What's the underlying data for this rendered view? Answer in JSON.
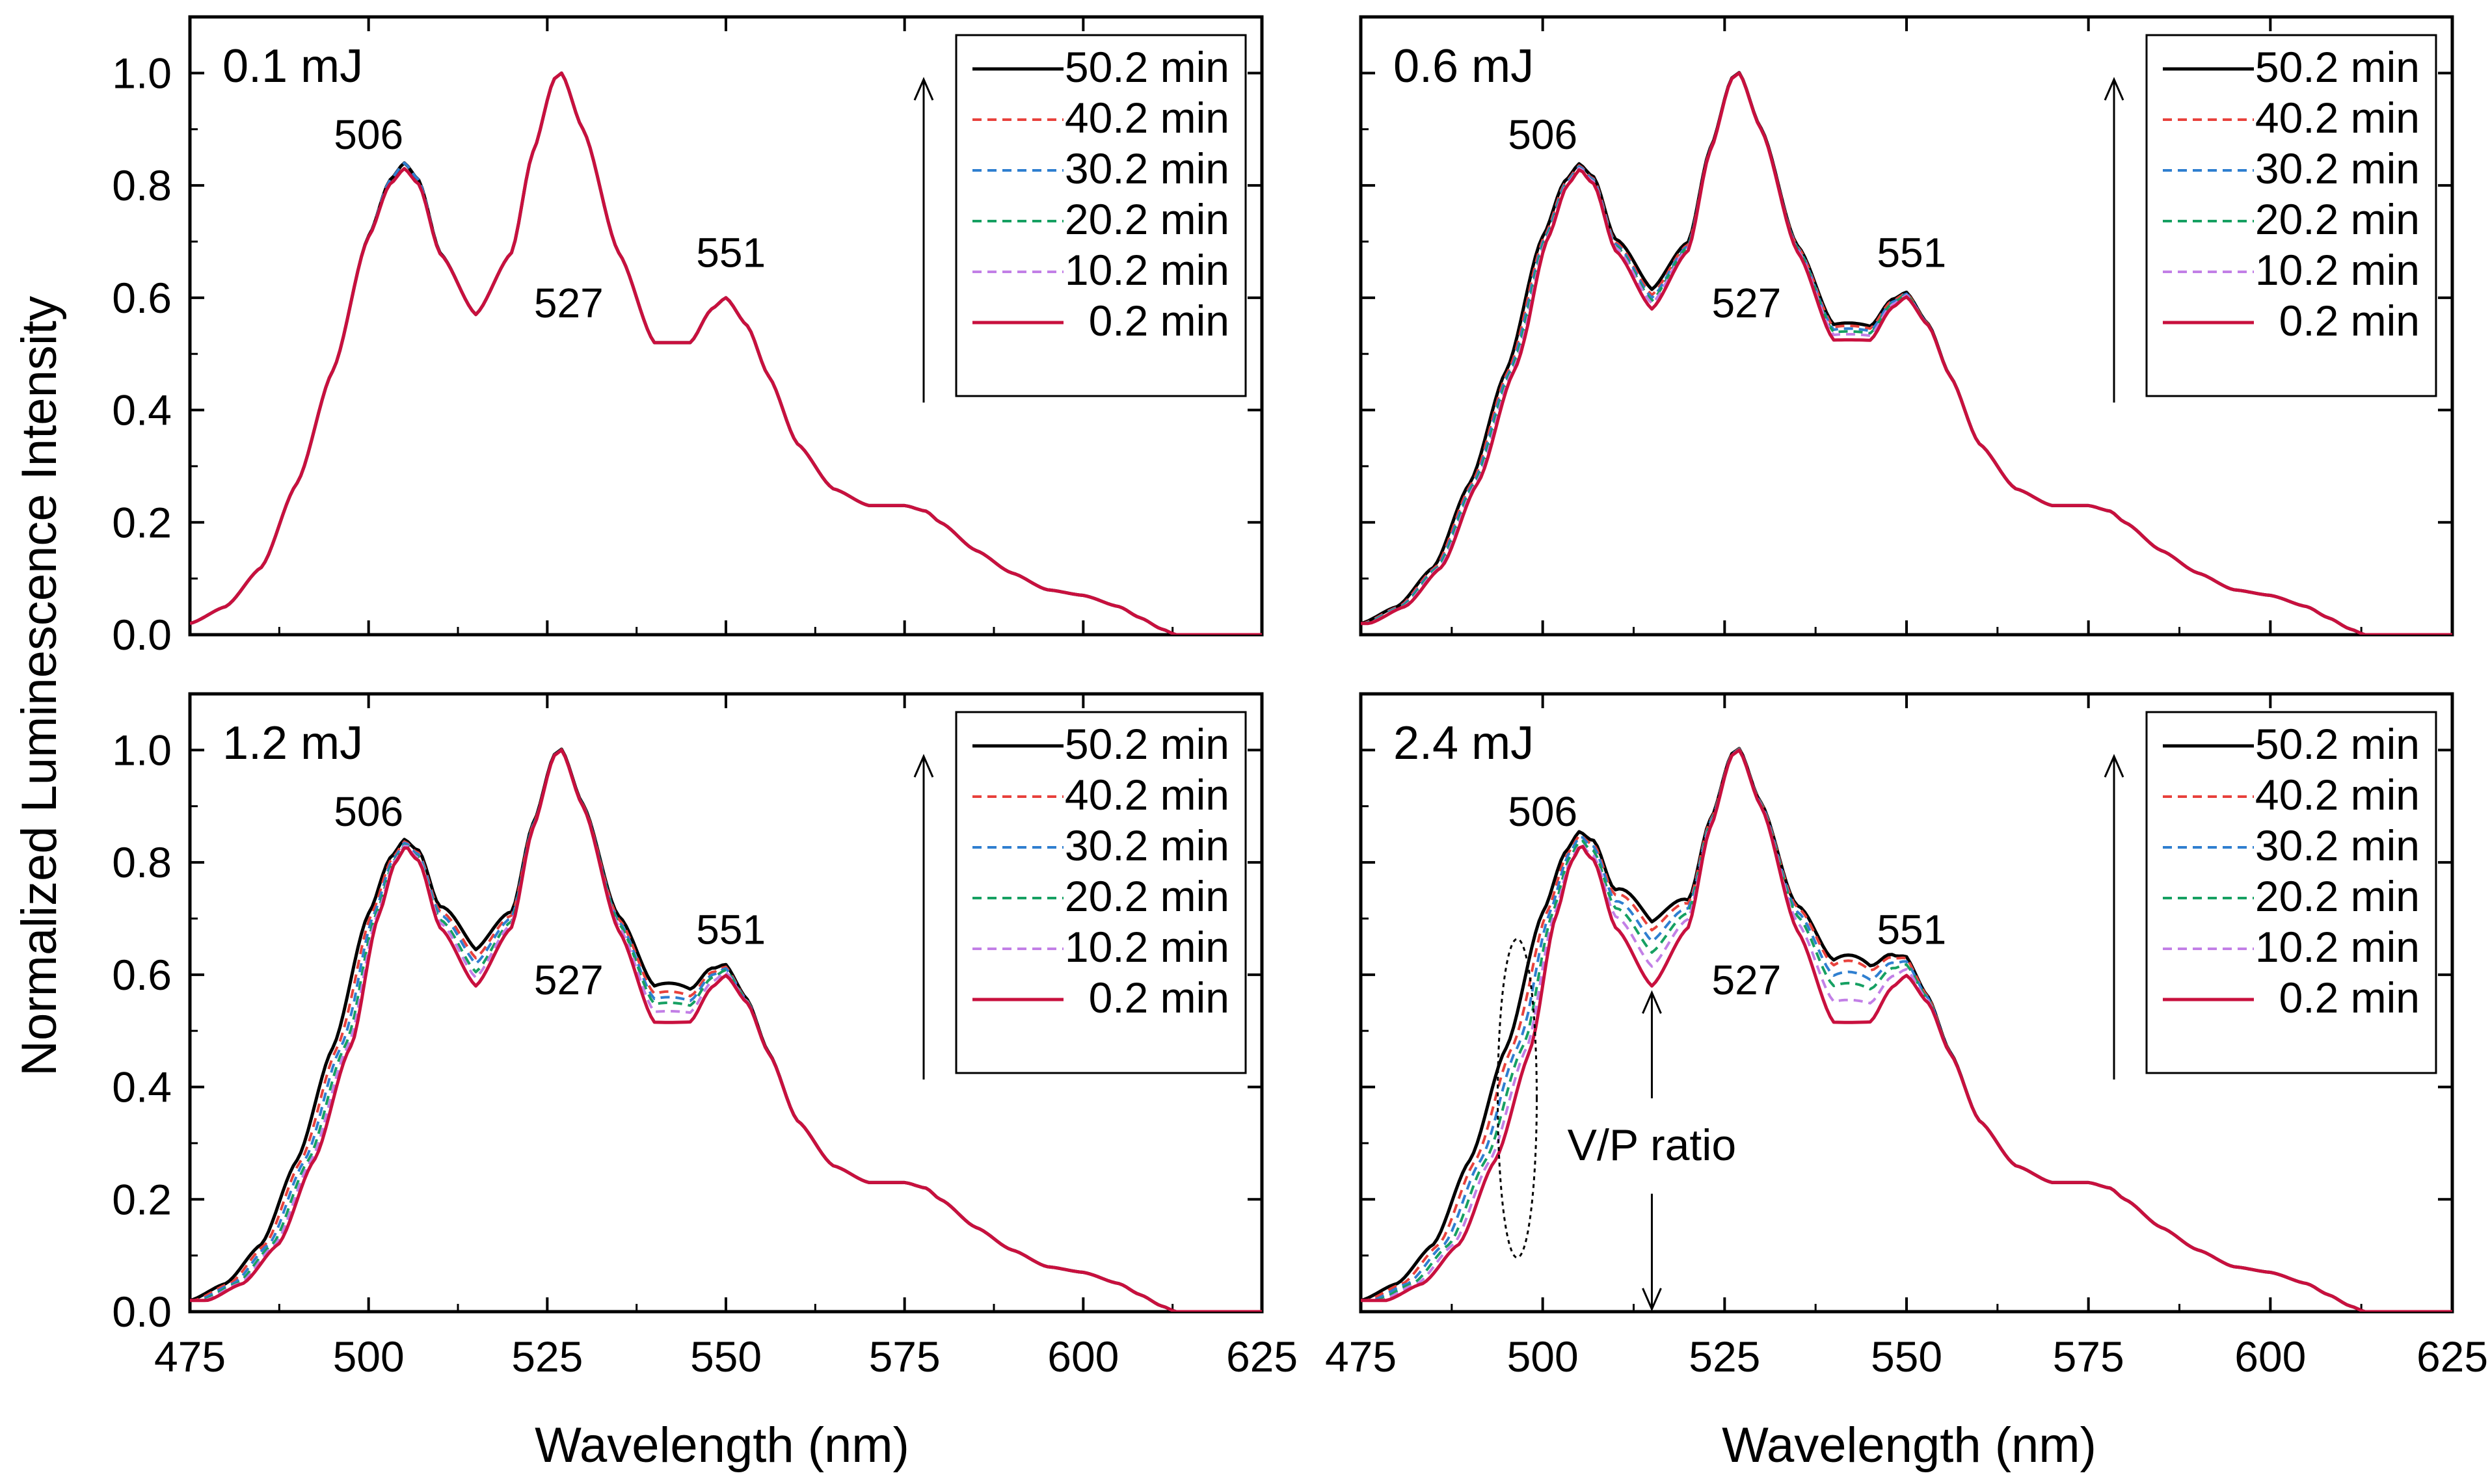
{
  "chart_data": {
    "type": "line",
    "title": "",
    "xlabel": "Wavelength (nm)",
    "ylabel": "Normalized Luminescence Intensity",
    "xlim": [
      475,
      625
    ],
    "ylim": [
      0.0,
      1.1
    ],
    "x_ticks": [
      475,
      500,
      525,
      550,
      575,
      600,
      625
    ],
    "x_tick_labels": [
      "475",
      "500",
      "525",
      "550",
      "575",
      "600",
      "625"
    ],
    "y_ticks": [
      0.0,
      0.2,
      0.4,
      0.6,
      0.8,
      1.0
    ],
    "y_tick_labels": [
      "0.0",
      "0.2",
      "0.4",
      "0.6",
      "0.8",
      "1.0"
    ],
    "grid": false,
    "legend_position": "top-right",
    "series_styles": [
      {
        "name": "50.2 min",
        "color": "#000000",
        "dash": "solid"
      },
      {
        "name": "40.2 min",
        "color": "#e8413c",
        "dash": "dashed"
      },
      {
        "name": "30.2 min",
        "color": "#2f7fd0",
        "dash": "dashed"
      },
      {
        "name": "20.2 min",
        "color": "#16a062",
        "dash": "dashed"
      },
      {
        "name": "10.2 min",
        "color": "#c27fe6",
        "dash": "dashed"
      },
      {
        "name": "0.2 min",
        "color": "#c8103e",
        "dash": "solid"
      }
    ],
    "peak_labels": [
      {
        "text": "506",
        "x": 506
      },
      {
        "text": "527",
        "x": 527
      },
      {
        "text": "551",
        "x": 551
      }
    ],
    "base_spectrum": {
      "x": [
        475,
        480,
        485,
        490,
        495,
        500,
        503,
        505,
        507,
        510,
        515,
        520,
        523,
        526,
        527,
        530,
        535,
        540,
        545,
        548,
        550,
        553,
        556,
        560,
        565,
        570,
        575,
        578,
        580,
        585,
        590,
        595,
        600,
        605,
        608,
        611,
        613,
        615,
        620,
        625
      ],
      "y": [
        0.02,
        0.05,
        0.12,
        0.27,
        0.47,
        0.71,
        0.81,
        0.84,
        0.81,
        0.68,
        0.57,
        0.68,
        0.86,
        0.99,
        1.0,
        0.9,
        0.68,
        0.52,
        0.52,
        0.58,
        0.6,
        0.55,
        0.46,
        0.34,
        0.26,
        0.23,
        0.23,
        0.22,
        0.2,
        0.15,
        0.11,
        0.08,
        0.07,
        0.05,
        0.03,
        0.01,
        0.0,
        0.0,
        0.0,
        0.0
      ]
    },
    "panels": [
      {
        "energy": "0.1 mJ",
        "series": [
          {
            "name": "50.2 min",
            "valley_506_527": 0.565,
            "valley_527_551": 0.5,
            "lower_shoulder_shift_nm": 0.0,
            "peak_506": 0.84
          },
          {
            "name": "40.2 min",
            "valley_506_527": 0.565,
            "valley_527_551": 0.5,
            "lower_shoulder_shift_nm": 0.0,
            "peak_506": 0.84
          },
          {
            "name": "30.2 min",
            "valley_506_527": 0.565,
            "valley_527_551": 0.5,
            "lower_shoulder_shift_nm": 0.0,
            "peak_506": 0.84
          },
          {
            "name": "20.2 min",
            "valley_506_527": 0.565,
            "valley_527_551": 0.5,
            "lower_shoulder_shift_nm": 0.0,
            "peak_506": 0.83
          },
          {
            "name": "10.2 min",
            "valley_506_527": 0.565,
            "valley_527_551": 0.5,
            "lower_shoulder_shift_nm": 0.0,
            "peak_506": 0.83
          },
          {
            "name": "0.2 min",
            "valley_506_527": 0.565,
            "valley_527_551": 0.5,
            "lower_shoulder_shift_nm": 0.0,
            "peak_506": 0.83
          }
        ]
      },
      {
        "energy": "0.6 mJ",
        "series": [
          {
            "name": "50.2 min",
            "valley_506_527": 0.61,
            "valley_527_551": 0.535,
            "lower_shoulder_shift_nm": 0.0,
            "peak_506": 0.835
          },
          {
            "name": "40.2 min",
            "valley_506_527": 0.6,
            "valley_527_551": 0.53,
            "lower_shoulder_shift_nm": 0.3,
            "peak_506": 0.833
          },
          {
            "name": "30.2 min",
            "valley_506_527": 0.595,
            "valley_527_551": 0.525,
            "lower_shoulder_shift_nm": 0.5,
            "peak_506": 0.832
          },
          {
            "name": "20.2 min",
            "valley_506_527": 0.59,
            "valley_527_551": 0.52,
            "lower_shoulder_shift_nm": 0.7,
            "peak_506": 0.83
          },
          {
            "name": "10.2 min",
            "valley_506_527": 0.585,
            "valley_527_551": 0.515,
            "lower_shoulder_shift_nm": 0.9,
            "peak_506": 0.83
          },
          {
            "name": "0.2 min",
            "valley_506_527": 0.575,
            "valley_527_551": 0.505,
            "lower_shoulder_shift_nm": 1.1,
            "peak_506": 0.828
          }
        ]
      },
      {
        "energy": "1.2 mJ",
        "series": [
          {
            "name": "50.2 min",
            "valley_506_527": 0.64,
            "valley_527_551": 0.565,
            "lower_shoulder_shift_nm": 0.0,
            "peak_506": 0.835
          },
          {
            "name": "40.2 min",
            "valley_506_527": 0.625,
            "valley_527_551": 0.55,
            "lower_shoulder_shift_nm": 0.6,
            "peak_506": 0.833
          },
          {
            "name": "30.2 min",
            "valley_506_527": 0.615,
            "valley_527_551": 0.54,
            "lower_shoulder_shift_nm": 1.1,
            "peak_506": 0.832
          },
          {
            "name": "20.2 min",
            "valley_506_527": 0.6,
            "valley_527_551": 0.53,
            "lower_shoulder_shift_nm": 1.6,
            "peak_506": 0.83
          },
          {
            "name": "10.2 min",
            "valley_506_527": 0.59,
            "valley_527_551": 0.515,
            "lower_shoulder_shift_nm": 2.0,
            "peak_506": 0.83
          },
          {
            "name": "0.2 min",
            "valley_506_527": 0.575,
            "valley_527_551": 0.495,
            "lower_shoulder_shift_nm": 2.4,
            "peak_506": 0.828
          }
        ]
      },
      {
        "energy": "2.4 mJ",
        "series": [
          {
            "name": "50.2 min",
            "valley_506_527": 0.69,
            "valley_527_551": 0.615,
            "lower_shoulder_shift_nm": 0.0,
            "peak_506": 0.845
          },
          {
            "name": "40.2 min",
            "valley_506_527": 0.675,
            "valley_527_551": 0.605,
            "lower_shoulder_shift_nm": 0.8,
            "peak_506": 0.84
          },
          {
            "name": "30.2 min",
            "valley_506_527": 0.655,
            "valley_527_551": 0.585,
            "lower_shoulder_shift_nm": 1.5,
            "peak_506": 0.84
          },
          {
            "name": "20.2 min",
            "valley_506_527": 0.635,
            "valley_527_551": 0.565,
            "lower_shoulder_shift_nm": 2.2,
            "peak_506": 0.835
          },
          {
            "name": "10.2 min",
            "valley_506_527": 0.61,
            "valley_527_551": 0.535,
            "lower_shoulder_shift_nm": 2.8,
            "peak_506": 0.83
          },
          {
            "name": "0.2 min",
            "valley_506_527": 0.575,
            "valley_527_551": 0.495,
            "lower_shoulder_shift_nm": 3.5,
            "peak_506": 0.83
          }
        ],
        "annotation": {
          "text": "V/P ratio",
          "x": 515,
          "valley_y": 0.575
        }
      }
    ]
  }
}
